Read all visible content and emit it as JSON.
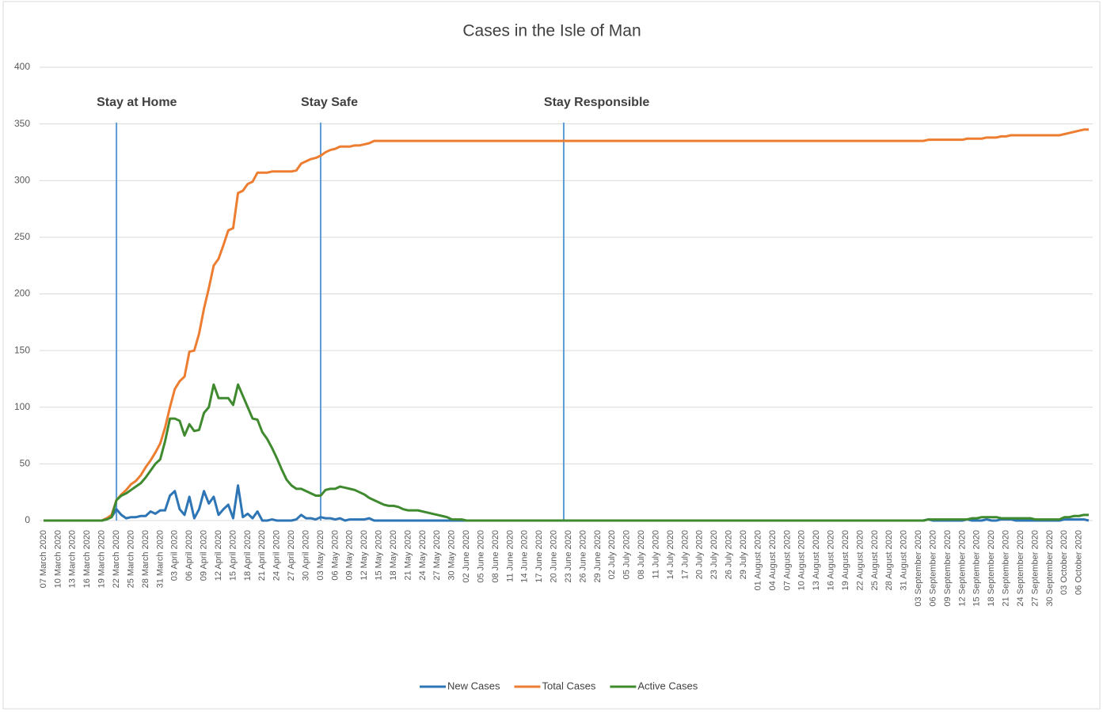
{
  "chart_data": {
    "type": "line",
    "title": "Cases in the Isle of Man",
    "categories": [
      "07 March 2020",
      null,
      null,
      "10 March 2020",
      null,
      null,
      "13 March 2020",
      null,
      null,
      "16 March 2020",
      null,
      null,
      "19 March 2020",
      null,
      null,
      "22 March 2020",
      null,
      null,
      "25 March 2020",
      null,
      null,
      "28 March 2020",
      null,
      null,
      "31 March 2020",
      null,
      null,
      "03 April 2020",
      null,
      null,
      "06 April 2020",
      null,
      null,
      "09 April 2020",
      null,
      null,
      "12 April 2020",
      null,
      null,
      "15 April 2020",
      null,
      null,
      "18 April 2020",
      null,
      null,
      "21 April 2020",
      null,
      null,
      "24 April 2020",
      null,
      null,
      "27 April 2020",
      null,
      null,
      "30 April 2020",
      null,
      null,
      "03 May 2020",
      null,
      null,
      "06 May 2020",
      null,
      null,
      "09 May 2020",
      null,
      null,
      "12 May 2020",
      null,
      null,
      "15 May 2020",
      null,
      null,
      "18 May 2020",
      null,
      null,
      "21 May 2020",
      null,
      null,
      "24 May 2020",
      null,
      null,
      "27 May 2020",
      null,
      null,
      "30 May 2020",
      null,
      null,
      "02 June 2020",
      null,
      null,
      "05 June 2020",
      null,
      null,
      "08 June 2020",
      null,
      null,
      "11 June 2020",
      null,
      null,
      "14 June 2020",
      null,
      null,
      "17 June 2020",
      null,
      null,
      "20 June 2020",
      null,
      null,
      "23 June 2020",
      null,
      null,
      "26 June 2020",
      null,
      null,
      "29 June 2020",
      null,
      null,
      "02 July 2020",
      null,
      null,
      "05 July 2020",
      null,
      null,
      "08 July 2020",
      null,
      null,
      "11 July 2020",
      null,
      null,
      "14 July 2020",
      null,
      null,
      "17 July 2020",
      null,
      null,
      "20 July 2020",
      null,
      null,
      "23 July 2020",
      null,
      null,
      "26 July 2020",
      null,
      null,
      "29 July 2020",
      null,
      null,
      "01 August 2020",
      null,
      null,
      "04 August 2020",
      null,
      null,
      "07 August 2020",
      null,
      null,
      "10 August 2020",
      null,
      null,
      "13 August 2020",
      null,
      null,
      "16 August 2020",
      null,
      null,
      "19 August 2020",
      null,
      null,
      "22 August 2020",
      null,
      null,
      "25 August 2020",
      null,
      null,
      "28 August 2020",
      null,
      null,
      "31 August 2020",
      null,
      null,
      "03 September 2020",
      null,
      null,
      "06 September 2020",
      null,
      null,
      "09 September 2020",
      null,
      null,
      "12 September 2020",
      null,
      null,
      "15 September 2020",
      null,
      null,
      "18 September 2020",
      null,
      null,
      "21 September 2020",
      null,
      null,
      "24 September 2020",
      null,
      null,
      "27 September 2020",
      null,
      null,
      "30 September 2020",
      null,
      null,
      "03 October 2020",
      null,
      null,
      "06 October 2020",
      null,
      null
    ],
    "series": [
      {
        "name": "New Cases",
        "color": "#2e75b6",
        "values": [
          0,
          0,
          0,
          0,
          0,
          0,
          0,
          0,
          0,
          0,
          0,
          0,
          0,
          2,
          3,
          10,
          5,
          2,
          3,
          3,
          4,
          4,
          8,
          6,
          9,
          9,
          22,
          26,
          10,
          5,
          21,
          2,
          10,
          26,
          15,
          21,
          5,
          10,
          14,
          2,
          31,
          3,
          6,
          2,
          8,
          0,
          0,
          1,
          0,
          0,
          0,
          0,
          1,
          5,
          2,
          2,
          1,
          3,
          2,
          2,
          1,
          2,
          0,
          1,
          1,
          1,
          1,
          2,
          0,
          0,
          0,
          0,
          0,
          0,
          0,
          0,
          0,
          0,
          0,
          0,
          0,
          0,
          0,
          0,
          0,
          0,
          0,
          0,
          0,
          0,
          0,
          0,
          0,
          0,
          0,
          0,
          0,
          0,
          0,
          0,
          0,
          0,
          0,
          0,
          0,
          0,
          0,
          0,
          0,
          0,
          0,
          0,
          0,
          0,
          0,
          0,
          0,
          0,
          0,
          0,
          0,
          0,
          0,
          0,
          0,
          0,
          0,
          0,
          0,
          0,
          0,
          0,
          0,
          0,
          0,
          0,
          0,
          0,
          0,
          0,
          0,
          0,
          0,
          0,
          0,
          0,
          0,
          0,
          0,
          0,
          0,
          0,
          0,
          0,
          0,
          0,
          0,
          0,
          0,
          0,
          0,
          0,
          0,
          0,
          0,
          0,
          0,
          0,
          0,
          0,
          0,
          0,
          0,
          0,
          0,
          0,
          0,
          0,
          0,
          0,
          0,
          0,
          1,
          0,
          0,
          0,
          0,
          0,
          0,
          0,
          1,
          0,
          0,
          0,
          1,
          0,
          0,
          1,
          1,
          1,
          0,
          0,
          0,
          0,
          0,
          0,
          0,
          0,
          0,
          0,
          1,
          1,
          1,
          1,
          1,
          0
        ]
      },
      {
        "name": "Total Cases",
        "color": "#ed7d31",
        "values": [
          0,
          0,
          0,
          0,
          0,
          0,
          0,
          0,
          0,
          0,
          0,
          0,
          0,
          2,
          5,
          18,
          23,
          27,
          32,
          35,
          40,
          47,
          53,
          60,
          68,
          82,
          100,
          116,
          123,
          127,
          149,
          150,
          165,
          187,
          205,
          225,
          231,
          243,
          256,
          258,
          289,
          291,
          297,
          299,
          307,
          307,
          307,
          308,
          308,
          308,
          308,
          308,
          309,
          315,
          317,
          319,
          320,
          322,
          325,
          327,
          328,
          330,
          330,
          330,
          331,
          331,
          332,
          333,
          335,
          335,
          335,
          335,
          335,
          335,
          335,
          335,
          335,
          335,
          335,
          335,
          335,
          335,
          335,
          335,
          335,
          335,
          335,
          335,
          335,
          335,
          335,
          335,
          335,
          335,
          335,
          335,
          335,
          335,
          335,
          335,
          335,
          335,
          335,
          335,
          335,
          335,
          335,
          335,
          335,
          335,
          335,
          335,
          335,
          335,
          335,
          335,
          335,
          335,
          335,
          335,
          335,
          335,
          335,
          335,
          335,
          335,
          335,
          335,
          335,
          335,
          335,
          335,
          335,
          335,
          335,
          335,
          335,
          335,
          335,
          335,
          335,
          335,
          335,
          335,
          335,
          335,
          335,
          335,
          335,
          335,
          335,
          335,
          335,
          335,
          335,
          335,
          335,
          335,
          335,
          335,
          335,
          335,
          335,
          335,
          335,
          335,
          335,
          335,
          335,
          335,
          335,
          335,
          335,
          335,
          335,
          335,
          335,
          335,
          335,
          335,
          335,
          335,
          336,
          336,
          336,
          336,
          336,
          336,
          336,
          336,
          337,
          337,
          337,
          337,
          338,
          338,
          338,
          339,
          339,
          340,
          340,
          340,
          340,
          340,
          340,
          340,
          340,
          340,
          340,
          340,
          341,
          342,
          343,
          344,
          345,
          345
        ]
      },
      {
        "name": "Active Cases",
        "color": "#3f8a2e",
        "values": [
          0,
          0,
          0,
          0,
          0,
          0,
          0,
          0,
          0,
          0,
          0,
          0,
          0,
          1,
          3,
          18,
          22,
          24,
          27,
          30,
          33,
          38,
          44,
          50,
          54,
          70,
          90,
          90,
          88,
          75,
          85,
          79,
          80,
          95,
          100,
          120,
          108,
          108,
          108,
          102,
          120,
          110,
          100,
          90,
          89,
          78,
          72,
          64,
          55,
          45,
          36,
          31,
          28,
          28,
          26,
          24,
          22,
          22,
          27,
          28,
          28,
          30,
          29,
          28,
          27,
          25,
          23,
          20,
          18,
          16,
          14,
          13,
          13,
          12,
          10,
          9,
          9,
          9,
          8,
          7,
          6,
          5,
          4,
          3,
          1,
          1,
          1,
          0,
          0,
          0,
          0,
          0,
          0,
          0,
          0,
          0,
          0,
          0,
          0,
          0,
          0,
          0,
          0,
          0,
          0,
          0,
          0,
          0,
          0,
          0,
          0,
          0,
          0,
          0,
          0,
          0,
          0,
          0,
          0,
          0,
          0,
          0,
          0,
          0,
          0,
          0,
          0,
          0,
          0,
          0,
          0,
          0,
          0,
          0,
          0,
          0,
          0,
          0,
          0,
          0,
          0,
          0,
          0,
          0,
          0,
          0,
          0,
          0,
          0,
          0,
          0,
          0,
          0,
          0,
          0,
          0,
          0,
          0,
          0,
          0,
          0,
          0,
          0,
          0,
          0,
          0,
          0,
          0,
          0,
          0,
          0,
          0,
          0,
          0,
          0,
          0,
          0,
          0,
          0,
          0,
          0,
          0,
          1,
          1,
          1,
          1,
          1,
          1,
          1,
          1,
          1,
          2,
          2,
          3,
          3,
          3,
          3,
          2,
          2,
          2,
          2,
          2,
          2,
          2,
          1,
          1,
          1,
          1,
          1,
          1,
          3,
          3,
          4,
          4,
          5,
          5
        ]
      }
    ],
    "annotations": [
      {
        "text": "Stay at Home",
        "x": 15
      },
      {
        "text": "Stay Safe",
        "x": 57
      },
      {
        "text": "Stay Responsible",
        "x": 107
      }
    ],
    "ylim": [
      0,
      400
    ],
    "yticks": [
      0,
      50,
      100,
      150,
      200,
      250,
      300,
      350,
      400
    ],
    "grid": true,
    "legend": "bottom"
  }
}
